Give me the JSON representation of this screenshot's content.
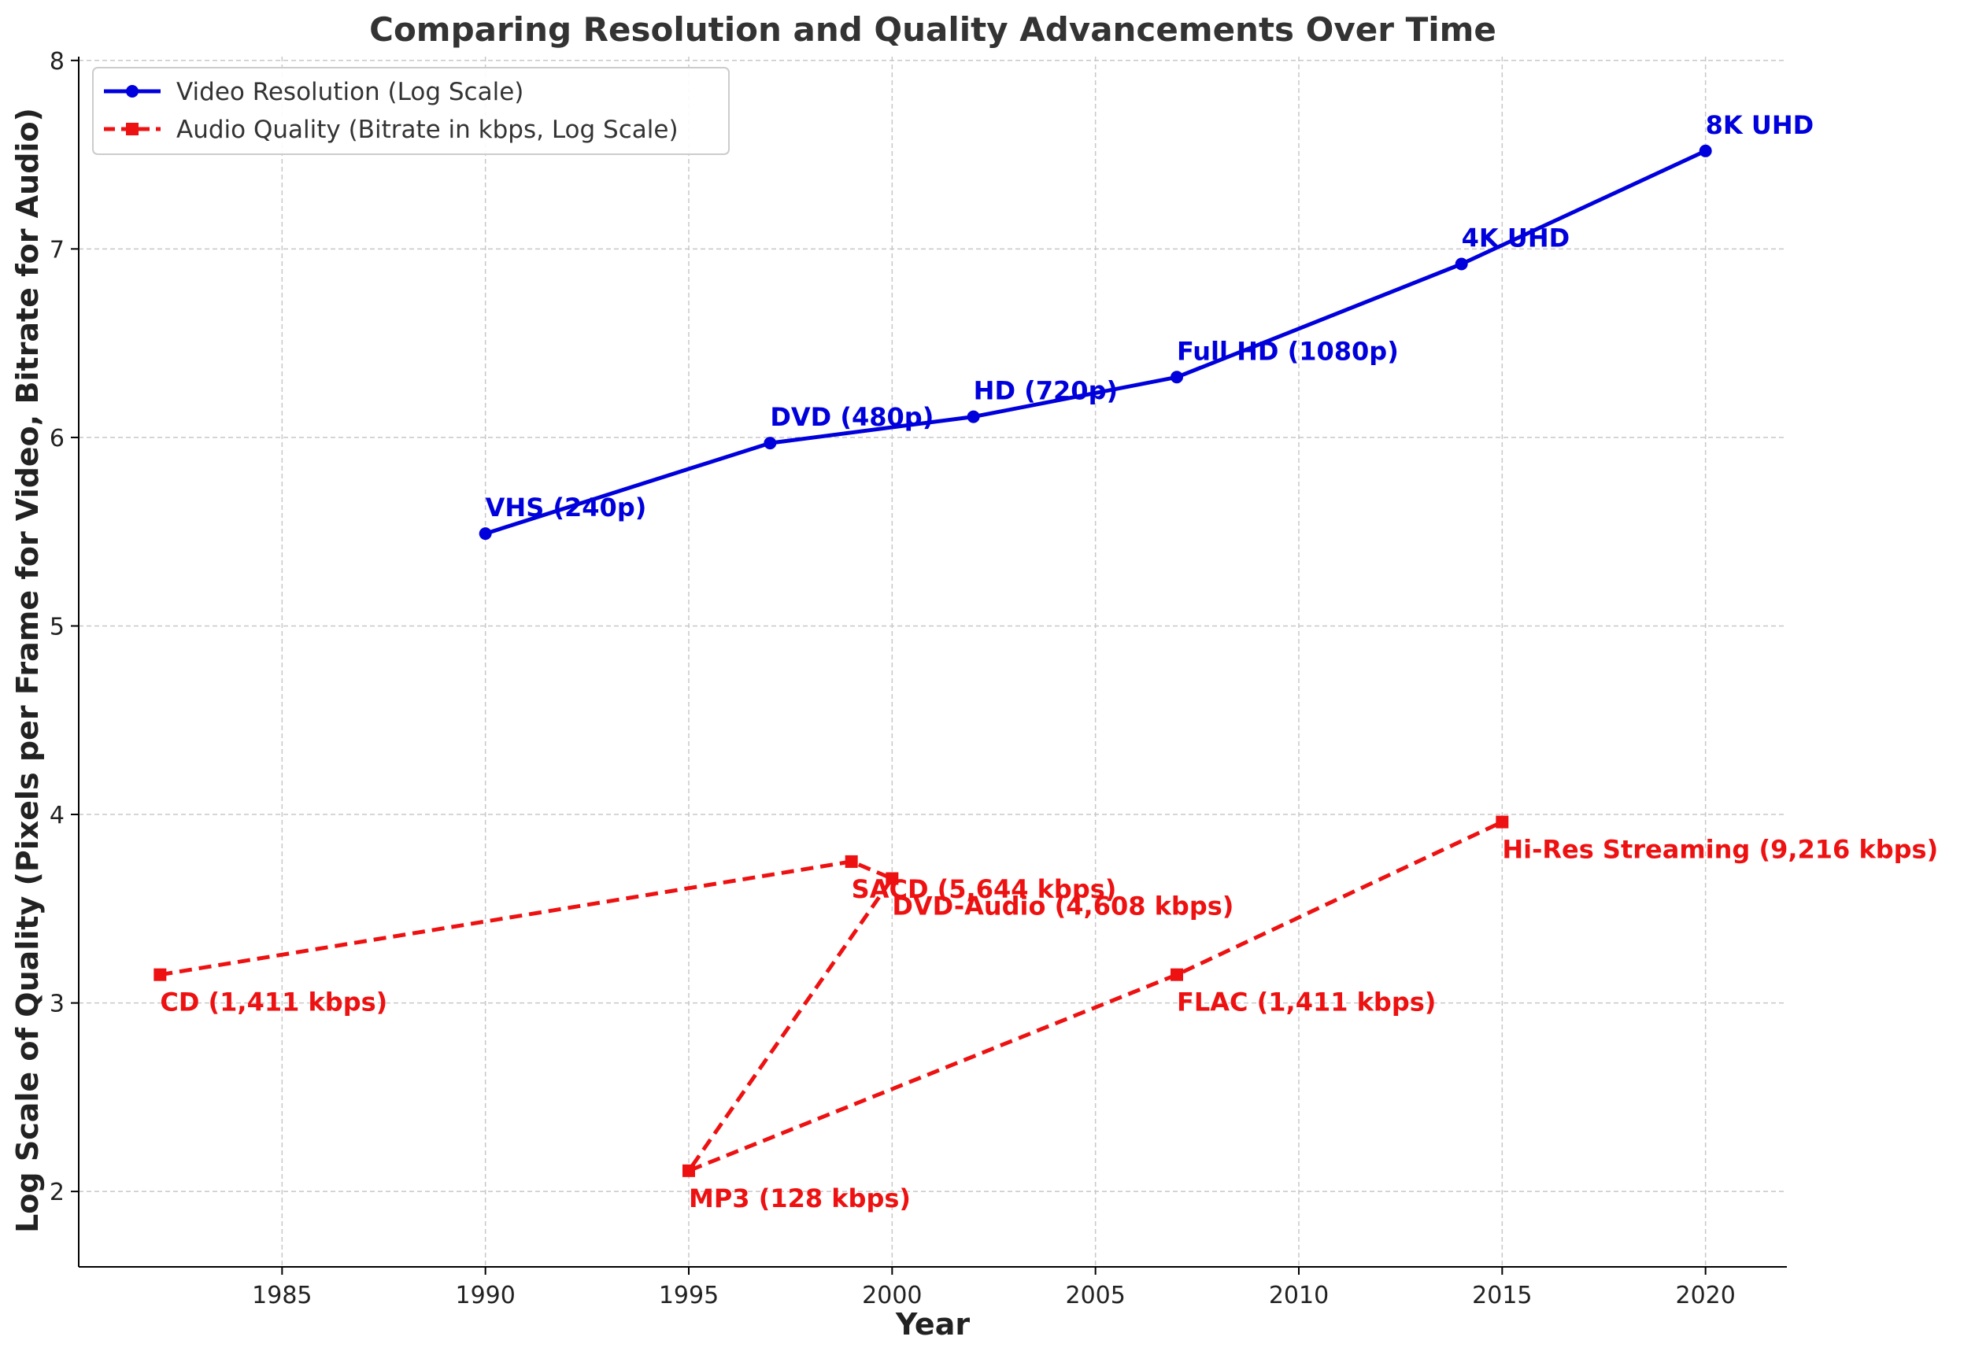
{
  "chart_data": {
    "type": "line",
    "title": "Comparing Resolution and Quality Advancements Over Time",
    "xlabel": "Year",
    "ylabel": "Log Scale of Quality (Pixels per Frame for Video, Bitrate for Audio)",
    "xlim": [
      1980,
      2022
    ],
    "ylim": [
      1.6,
      8.02
    ],
    "xticks": [
      1985,
      1990,
      1995,
      2000,
      2005,
      2010,
      2015,
      2020
    ],
    "yticks": [
      2,
      3,
      4,
      5,
      6,
      7,
      8
    ],
    "grid": true,
    "legend_position": "top-left",
    "series": [
      {
        "name": "Video Resolution (Log Scale)",
        "color": "#0000dd",
        "line_style": "solid",
        "marker": "circle",
        "x": [
          1990,
          1997,
          2002,
          2007,
          2014,
          2020
        ],
        "y": [
          5.49,
          5.97,
          6.11,
          6.32,
          6.92,
          7.52
        ],
        "labels": [
          "VHS (240p)",
          "DVD (480p)",
          "HD (720p)",
          "Full HD (1080p)",
          "4K UHD",
          "8K UHD"
        ]
      },
      {
        "name": "Audio Quality (Bitrate in kbps, Log Scale)",
        "color": "#ee1111",
        "line_style": "dashed",
        "marker": "square",
        "x": [
          1982,
          1999,
          2000,
          1995,
          2007,
          2015
        ],
        "y": [
          3.15,
          3.75,
          3.66,
          2.11,
          3.15,
          3.96
        ],
        "labels": [
          "CD (1,411 kbps)",
          "SACD (5,644 kbps)",
          "DVD-Audio (4,608 kbps)",
          "MP3 (128 kbps)",
          "FLAC (1,411 kbps)",
          "Hi-Res Streaming (9,216 kbps)"
        ]
      }
    ]
  }
}
